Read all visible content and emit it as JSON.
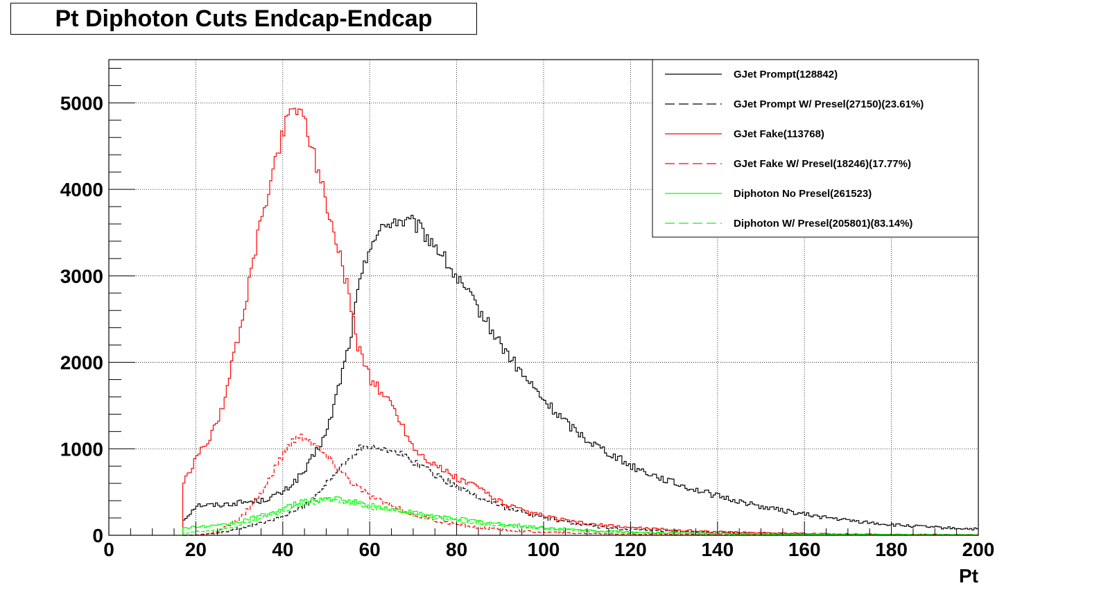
{
  "chart_data": {
    "type": "line",
    "title": "Pt Diphoton Cuts Endcap-Endcap",
    "xlabel": "Pt",
    "ylabel": "",
    "xlim": [
      0,
      200
    ],
    "ylim": [
      0,
      5500
    ],
    "x_ticks": [
      "0",
      "20",
      "40",
      "60",
      "80",
      "100",
      "120",
      "140",
      "160",
      "180",
      "200"
    ],
    "y_ticks": [
      "0",
      "1000",
      "2000",
      "3000",
      "4000",
      "5000"
    ],
    "grid": true,
    "legend_position": "top-right",
    "histogram_step": true,
    "x": [
      17,
      20,
      25,
      30,
      35,
      40,
      42,
      45,
      50,
      55,
      57,
      60,
      65,
      70,
      75,
      80,
      85,
      90,
      95,
      100,
      105,
      110,
      115,
      120,
      130,
      140,
      150,
      160,
      170,
      180,
      190,
      200
    ],
    "series": [
      {
        "name": "GJet Prompt(128842)",
        "color": "#000000",
        "style": "solid",
        "values": [
          180,
          350,
          350,
          380,
          400,
          500,
          600,
          750,
          1200,
          2200,
          2800,
          3400,
          3650,
          3600,
          3350,
          2950,
          2600,
          2200,
          1850,
          1550,
          1300,
          1100,
          950,
          800,
          600,
          450,
          330,
          240,
          170,
          120,
          90,
          70
        ]
      },
      {
        "name": "GJet Prompt W/ Presel(27150)(23.61%)",
        "color": "#000000",
        "style": "dashed",
        "values": [
          0,
          0,
          30,
          80,
          140,
          220,
          260,
          350,
          600,
          900,
          1000,
          1050,
          980,
          850,
          700,
          560,
          440,
          340,
          260,
          200,
          150,
          110,
          85,
          65,
          40,
          28,
          20,
          15,
          10,
          8,
          6,
          5
        ]
      },
      {
        "name": "GJet Fake(113768)",
        "color": "#ff0000",
        "style": "solid",
        "values": [
          600,
          900,
          1300,
          2400,
          3700,
          4700,
          5000,
          4800,
          3800,
          2800,
          2200,
          1800,
          1500,
          1000,
          800,
          650,
          550,
          380,
          280,
          220,
          170,
          130,
          110,
          90,
          60,
          40,
          30,
          20,
          15,
          10,
          8,
          5
        ]
      },
      {
        "name": "GJet Fake W/ Presel(18246)(17.77%)",
        "color": "#ff0000",
        "style": "dashed",
        "values": [
          0,
          0,
          40,
          200,
          500,
          950,
          1100,
          1150,
          900,
          650,
          560,
          450,
          330,
          240,
          170,
          120,
          90,
          65,
          48,
          35,
          28,
          22,
          18,
          14,
          10,
          7,
          5,
          4,
          3,
          2,
          2,
          1
        ]
      },
      {
        "name": "Diphoton No Presel(261523)",
        "color": "#00ff00",
        "style": "solid",
        "values": [
          80,
          100,
          110,
          160,
          230,
          310,
          350,
          400,
          430,
          400,
          380,
          350,
          300,
          260,
          220,
          190,
          160,
          130,
          110,
          90,
          70,
          55,
          45,
          38,
          28,
          20,
          15,
          12,
          10,
          8,
          6,
          5
        ]
      },
      {
        "name": "Diphoton W/ Presel(205801)(83.14%)",
        "color": "#00ff00",
        "style": "dashed",
        "values": [
          20,
          40,
          60,
          120,
          200,
          290,
          320,
          370,
          410,
          380,
          360,
          330,
          280,
          240,
          200,
          170,
          140,
          115,
          95,
          78,
          62,
          50,
          40,
          33,
          24,
          17,
          13,
          10,
          8,
          6,
          5,
          4
        ]
      }
    ]
  }
}
